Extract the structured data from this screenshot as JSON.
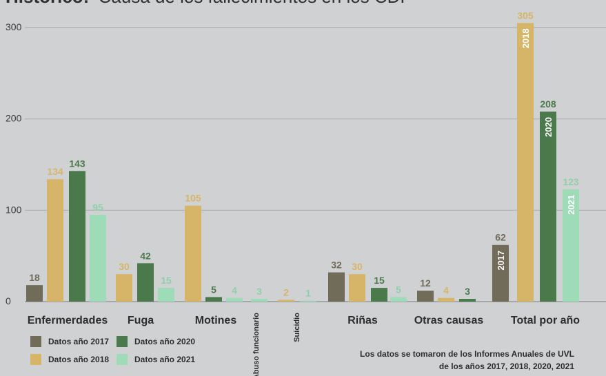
{
  "title": {
    "bold": "Histórico:",
    "rest": "Causa de los fallecimientos en los CDP"
  },
  "legend": [
    {
      "label": "Datos año 2017",
      "color": "#716b5a"
    },
    {
      "label": "Datos año 2020",
      "color": "#4a7a4c"
    },
    {
      "label": "Datos año 2018",
      "color": "#d6b568"
    },
    {
      "label": "Datos año 2021",
      "color": "#9ddcb7"
    }
  ],
  "source_note": {
    "line1": "Los datos se tomaron de los Informes Anuales de UVL",
    "line2": "de los años 2017, 2018, 2020, 2021"
  },
  "chart_data": {
    "type": "bar",
    "ylim": [
      0,
      300
    ],
    "yticks": [
      0,
      100,
      200,
      300
    ],
    "grid": true,
    "legend_position": "bottom-left",
    "series": [
      {
        "name": "Datos año 2017",
        "color": "#716b5a"
      },
      {
        "name": "Datos año 2018",
        "color": "#d6b568"
      },
      {
        "name": "Datos año 2020",
        "color": "#4a7a4c"
      },
      {
        "name": "Datos año 2021",
        "color": "#9ddcb7"
      }
    ],
    "groups": [
      {
        "label": "Enfermerdades",
        "label_style": "horizontal",
        "values": [
          18,
          134,
          143,
          95
        ]
      },
      {
        "label": "Fuga",
        "label_style": "horizontal",
        "values": [
          null,
          30,
          42,
          15
        ]
      },
      {
        "label": "Motines",
        "label_style": "horizontal",
        "values": [
          null,
          105,
          5,
          4
        ]
      },
      {
        "label": "Abuso funcionario",
        "label_style": "vertical",
        "values": [
          null,
          null,
          null,
          3
        ]
      },
      {
        "label": "Suicidio",
        "label_style": "vertical",
        "values": [
          null,
          2,
          null,
          1
        ]
      },
      {
        "label": "Riñas",
        "label_style": "horizontal",
        "values": [
          32,
          30,
          15,
          5
        ]
      },
      {
        "label": "Otras causas",
        "label_style": "horizontal",
        "values": [
          12,
          4,
          3,
          null
        ]
      },
      {
        "label": "Total por año",
        "label_style": "horizontal",
        "values": [
          62,
          305,
          208,
          123
        ],
        "bar_labels": [
          "2017",
          "2018",
          "2020",
          "2021"
        ]
      }
    ]
  }
}
